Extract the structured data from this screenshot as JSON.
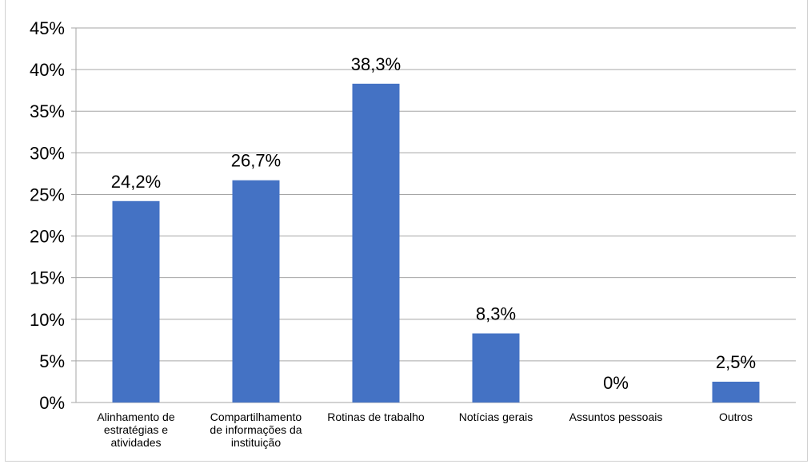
{
  "chart_data": {
    "type": "bar",
    "categories": [
      [
        "Alinhamento de",
        "estratégias e",
        "atividades"
      ],
      [
        "Compartilhamento",
        "de informações da",
        "instituição"
      ],
      [
        "Rotinas de trabalho"
      ],
      [
        "Notícias gerais"
      ],
      [
        "Assuntos pessoais"
      ],
      [
        "Outros"
      ]
    ],
    "values": [
      24.2,
      26.7,
      38.3,
      8.3,
      0,
      2.5
    ],
    "data_labels": [
      "24,2%",
      "26,7%",
      "38,3%",
      "8,3%",
      "0%",
      "2,5%"
    ],
    "yticks": [
      "0%",
      "5%",
      "10%",
      "15%",
      "20%",
      "25%",
      "30%",
      "35%",
      "40%",
      "45%"
    ],
    "ylim": [
      0,
      45
    ],
    "ystep": 5,
    "grid": true,
    "bar_color": "#4472C4",
    "grid_color": "#a6a6a6"
  }
}
